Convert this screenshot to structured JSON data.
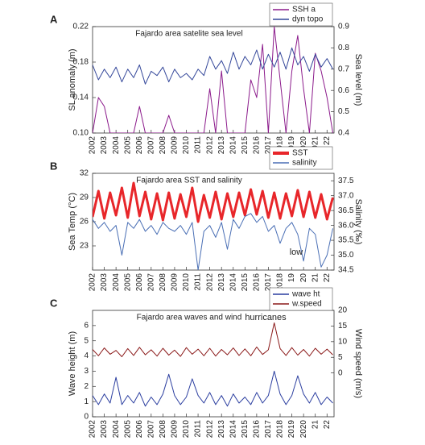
{
  "chart_data": [
    {
      "type": "line",
      "panel_label": "A",
      "title": "Fajardo area satelite sea level",
      "y_label": "SL anomaly (m)",
      "y2_label": "Sea level (m)",
      "x": [
        2002,
        2002.5,
        2003,
        2003.5,
        2004,
        2004.5,
        2005,
        2005.5,
        2006,
        2006.5,
        2007,
        2007.5,
        2008,
        2008.5,
        2009,
        2009.5,
        2010,
        2010.5,
        2011,
        2011.5,
        2012,
        2012.5,
        2013,
        2013.5,
        2014,
        2014.5,
        2015,
        2015.5,
        2016,
        2016.5,
        2017,
        2017.5,
        2018,
        2018.5,
        2019,
        2019.5,
        2020,
        2020.5,
        2021,
        2021.5,
        2022,
        2022.5
      ],
      "xlim": [
        2002,
        2022.6
      ],
      "xticks": [
        2002,
        2003,
        2004,
        2005,
        2006,
        2007,
        2008,
        2009,
        2010,
        2011,
        2012,
        2013,
        2014,
        2015,
        2016,
        2017,
        2018,
        2019,
        2020,
        2021,
        {
          "value": 2022,
          "label": "22"
        }
      ],
      "ylim": [
        0.1,
        0.22
      ],
      "yticks": [
        {
          "value": 0.1,
          "label": "0.10"
        },
        0.14,
        0.18,
        0.22
      ],
      "y2lim": [
        0.4,
        0.9
      ],
      "y2ticks": [
        0.4,
        0.5,
        0.6,
        0.7,
        0.8,
        0.9
      ],
      "series": [
        {
          "name": "SSH a",
          "color": "#8b1a8b",
          "values": [
            0.1,
            0.14,
            0.13,
            0.1,
            0.1,
            0.1,
            0.1,
            0.1,
            0.13,
            0.1,
            0.1,
            0.1,
            0.1,
            0.12,
            0.1,
            0.1,
            0.1,
            0.1,
            0.1,
            0.1,
            0.15,
            0.1,
            0.17,
            0.1,
            0.1,
            0.1,
            0.1,
            0.16,
            0.14,
            0.2,
            0.1,
            0.22,
            0.16,
            0.1,
            0.17,
            0.21,
            0.15,
            0.1,
            0.19,
            0.17,
            0.14,
            0.1
          ]
        },
        {
          "name": "dyn topo",
          "color": "#34479a",
          "axis": "y2",
          "values": [
            0.72,
            0.65,
            0.7,
            0.66,
            0.71,
            0.64,
            0.7,
            0.66,
            0.72,
            0.63,
            0.69,
            0.67,
            0.71,
            0.64,
            0.7,
            0.66,
            0.68,
            0.65,
            0.7,
            0.67,
            0.76,
            0.7,
            0.74,
            0.68,
            0.78,
            0.7,
            0.76,
            0.72,
            0.79,
            0.7,
            0.77,
            0.71,
            0.78,
            0.7,
            0.8,
            0.72,
            0.76,
            0.69,
            0.77,
            0.71,
            0.75,
            0.7
          ]
        }
      ]
    },
    {
      "type": "line",
      "panel_label": "B",
      "title": "Fajardo area SST and salinity",
      "y_label": "Sea Temp (°C)",
      "y2_label": "Salinity (‰)",
      "annotation": "low",
      "x": [
        2002,
        2002.5,
        2003,
        2003.5,
        2004,
        2004.5,
        2005,
        2005.5,
        2006,
        2006.5,
        2007,
        2007.5,
        2008,
        2008.5,
        2009,
        2009.5,
        2010,
        2010.5,
        2011,
        2011.5,
        2012,
        2012.5,
        2013,
        2013.5,
        2014,
        2014.5,
        2015,
        2015.5,
        2016,
        2016.5,
        2017,
        2017.5,
        2018,
        2018.5,
        2019,
        2019.5,
        2020,
        2020.5,
        2021,
        2021.5,
        2022,
        2022.5
      ],
      "xlim": [
        2002,
        2022.6
      ],
      "xticks": [
        2002,
        2003,
        2004,
        2005,
        2006,
        2007,
        2008,
        2009,
        2010,
        2011,
        2012,
        2013,
        2014,
        2015,
        2016,
        2017,
        2018,
        {
          "value": 2019,
          "label": "19"
        },
        {
          "value": 2020,
          "label": "20"
        },
        {
          "value": 2021,
          "label": "21"
        },
        {
          "value": 2022,
          "label": "22"
        }
      ],
      "ylim": [
        20,
        32
      ],
      "yticks": [
        23,
        26,
        29,
        32
      ],
      "y2lim": [
        34.5,
        37.75
      ],
      "y2ticks": [
        34.5,
        {
          "value": 35,
          "label": "35.0"
        },
        35.5,
        {
          "value": 36,
          "label": "36.0"
        },
        36.5,
        {
          "value": 37,
          "label": "37.0"
        },
        37.5
      ],
      "series": [
        {
          "name": "SST",
          "color": "#e8262a",
          "values": [
            26.6,
            29.8,
            26.4,
            29.6,
            26.8,
            30.2,
            26.5,
            30.8,
            26.7,
            29.7,
            26.3,
            29.5,
            26.2,
            29.6,
            26.4,
            29.4,
            26.6,
            30.2,
            26.0,
            29.3,
            26.5,
            29.7,
            26.3,
            29.5,
            26.6,
            29.6,
            26.8,
            30.0,
            26.9,
            29.8,
            26.5,
            29.6,
            26.4,
            29.5,
            26.7,
            29.9,
            26.6,
            29.7,
            26.5,
            29.4,
            26.3,
            29.0
          ]
        },
        {
          "name": "salinity",
          "color": "#4a6fb5",
          "axis": "y2",
          "values": [
            36.2,
            35.9,
            36.1,
            35.8,
            36.0,
            35.0,
            36.1,
            35.9,
            36.2,
            35.8,
            36.0,
            35.7,
            36.1,
            35.9,
            35.8,
            36.0,
            35.7,
            36.1,
            34.5,
            35.8,
            36.0,
            35.6,
            36.1,
            35.2,
            36.2,
            35.9,
            36.3,
            36.4,
            36.1,
            36.3,
            35.8,
            36.0,
            35.4,
            35.9,
            36.1,
            35.7,
            34.8,
            35.9,
            35.7,
            34.6,
            35.0,
            35.9
          ]
        }
      ]
    },
    {
      "type": "line",
      "panel_label": "C",
      "title": "Fajardo area waves and wind",
      "y_label": "Wave height (m)",
      "y2_label": "Wind speed (m/s)",
      "annotation": "hurricanes",
      "x": [
        2002,
        2002.5,
        2003,
        2003.5,
        2004,
        2004.5,
        2005,
        2005.5,
        2006,
        2006.5,
        2007,
        2007.5,
        2008,
        2008.5,
        2009,
        2009.5,
        2010,
        2010.5,
        2011,
        2011.5,
        2012,
        2012.5,
        2013,
        2013.5,
        2014,
        2014.5,
        2015,
        2015.5,
        2016,
        2016.5,
        2017,
        2017.5,
        2018,
        2018.5,
        2019,
        2019.5,
        2020,
        2020.5,
        2021,
        2021.5,
        2022,
        2022.5
      ],
      "xlim": [
        2002,
        2022.6
      ],
      "xticks": [
        2002,
        2003,
        2004,
        2005,
        2006,
        2007,
        2008,
        2009,
        2010,
        2011,
        2012,
        2013,
        2014,
        2015,
        2016,
        2017,
        2018,
        2019,
        2020,
        {
          "value": 2021,
          "label": "21"
        },
        {
          "value": 2022,
          "label": "22"
        }
      ],
      "ylim": [
        0,
        7
      ],
      "yticks": [
        0,
        1,
        2,
        3,
        4,
        5,
        6
      ],
      "y2lim": [
        -14,
        20
      ],
      "y2ticks": [
        0,
        5,
        10,
        15,
        20
      ],
      "series": [
        {
          "name": "wave ht",
          "color": "#2c3fa0",
          "values": [
            1.4,
            0.8,
            1.5,
            0.9,
            2.6,
            0.8,
            1.4,
            0.9,
            1.6,
            0.7,
            1.3,
            0.8,
            1.5,
            2.8,
            1.4,
            0.8,
            1.3,
            2.5,
            1.4,
            0.9,
            1.6,
            0.8,
            1.4,
            0.7,
            1.5,
            0.9,
            1.3,
            0.8,
            1.6,
            0.9,
            1.4,
            3.0,
            1.5,
            0.8,
            1.4,
            2.7,
            1.5,
            0.9,
            1.6,
            0.8,
            1.3,
            0.9
          ]
        },
        {
          "name": "w.speed",
          "color": "#8b1a1a",
          "axis": "y2",
          "values": [
            7.5,
            5.5,
            8.0,
            6.0,
            7.2,
            5.2,
            7.8,
            5.6,
            8.2,
            5.8,
            7.4,
            5.4,
            7.9,
            5.7,
            7.3,
            5.3,
            8.1,
            6.0,
            7.6,
            5.5,
            7.9,
            5.4,
            7.5,
            5.8,
            8.0,
            5.6,
            7.7,
            5.5,
            8.3,
            5.9,
            7.4,
            16.0,
            7.8,
            5.6,
            8.1,
            5.7,
            7.5,
            5.4,
            7.9,
            6.0,
            7.6,
            5.8
          ]
        }
      ]
    }
  ]
}
